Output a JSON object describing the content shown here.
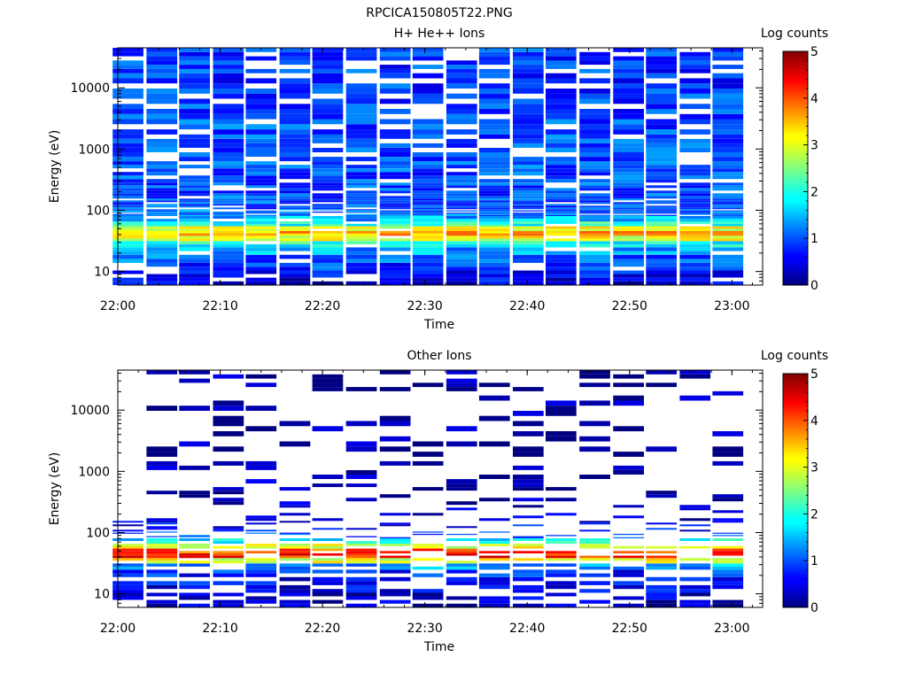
{
  "page_title": "RPCICA150805T22.PNG",
  "chart_data": [
    {
      "type": "heatmap",
      "title": "H+ He++ Ions",
      "xlabel": "Time",
      "ylabel": "Energy (eV)",
      "x_range": [
        "22:00",
        "23:03"
      ],
      "x_ticks": [
        "22:00",
        "22:10",
        "22:20",
        "22:30",
        "22:40",
        "22:50",
        "23:00"
      ],
      "y_scale": "log",
      "y_range": [
        6,
        45000
      ],
      "y_ticks": [
        10,
        100,
        1000,
        10000
      ],
      "y_tick_labels": [
        "10",
        "100",
        "1000",
        "10000"
      ],
      "colorbar": {
        "label": "Log counts",
        "range": [
          0,
          5
        ],
        "ticks": [
          0,
          1,
          2,
          3,
          4,
          5
        ],
        "ticks_labels": [
          "0",
          "1",
          "2",
          "3",
          "4",
          "5"
        ],
        "colormap": "jet"
      },
      "time_columns": [
        "22:01.0",
        "22:04.3",
        "22:07.5",
        "22:10.8",
        "22:14.0",
        "22:17.3",
        "22:20.5",
        "22:23.8",
        "22:27.1",
        "22:30.3",
        "22:33.6",
        "22:36.8",
        "22:40.1",
        "22:43.3",
        "22:46.6",
        "22:49.9",
        "22:53.1",
        "22:56.4",
        "22:59.6"
      ],
      "profile": {
        "energy_bins_eV": [
          7,
          9,
          12,
          16,
          22,
          28,
          35,
          42,
          50,
          60,
          72,
          90,
          120,
          200,
          400,
          1000,
          3000,
          10000,
          30000
        ],
        "typical_log_counts": [
          0.5,
          0.7,
          0.9,
          1.1,
          1.4,
          2.0,
          3.0,
          3.5,
          3.0,
          2.0,
          1.5,
          1.2,
          1.0,
          1.0,
          1.0,
          1.0,
          1.0,
          0.9,
          0.9
        ],
        "empty_fraction": 0.12,
        "peak_energy_eV": 45,
        "peak_log_counts": 3.8
      }
    },
    {
      "type": "heatmap",
      "title": "Other Ions",
      "xlabel": "Time",
      "ylabel": "Energy (eV)",
      "x_range": [
        "22:00",
        "23:03"
      ],
      "x_ticks": [
        "22:00",
        "22:10",
        "22:20",
        "22:30",
        "22:40",
        "22:50",
        "23:00"
      ],
      "y_scale": "log",
      "y_range": [
        6,
        45000
      ],
      "y_ticks": [
        10,
        100,
        1000,
        10000
      ],
      "y_tick_labels": [
        "10",
        "100",
        "1000",
        "10000"
      ],
      "colorbar": {
        "label": "Log counts",
        "range": [
          0,
          5
        ],
        "ticks": [
          0,
          1,
          2,
          3,
          4,
          5
        ],
        "ticks_labels": [
          "0",
          "1",
          "2",
          "3",
          "4",
          "5"
        ],
        "colormap": "jet"
      },
      "time_columns": [
        "22:01.0",
        "22:04.3",
        "22:07.5",
        "22:10.8",
        "22:14.0",
        "22:17.3",
        "22:20.5",
        "22:23.8",
        "22:27.1",
        "22:30.3",
        "22:33.6",
        "22:36.8",
        "22:40.1",
        "22:43.3",
        "22:46.6",
        "22:49.9",
        "22:53.1",
        "22:56.4",
        "22:59.6"
      ],
      "profile": {
        "energy_bins_eV": [
          7,
          9,
          12,
          16,
          22,
          28,
          35,
          42,
          50,
          60,
          72,
          90,
          120,
          200,
          400,
          1000,
          3000,
          10000,
          30000
        ],
        "typical_log_counts": [
          0.3,
          0.4,
          0.5,
          0.6,
          0.8,
          1.4,
          3.0,
          4.2,
          4.0,
          3.0,
          1.8,
          1.0,
          0.6,
          0.3,
          0.2,
          0.2,
          0.1,
          0.1,
          0.1
        ],
        "empty_fraction": 0.55,
        "peak_energy_eV": 45,
        "peak_log_counts": 4.3
      }
    }
  ]
}
